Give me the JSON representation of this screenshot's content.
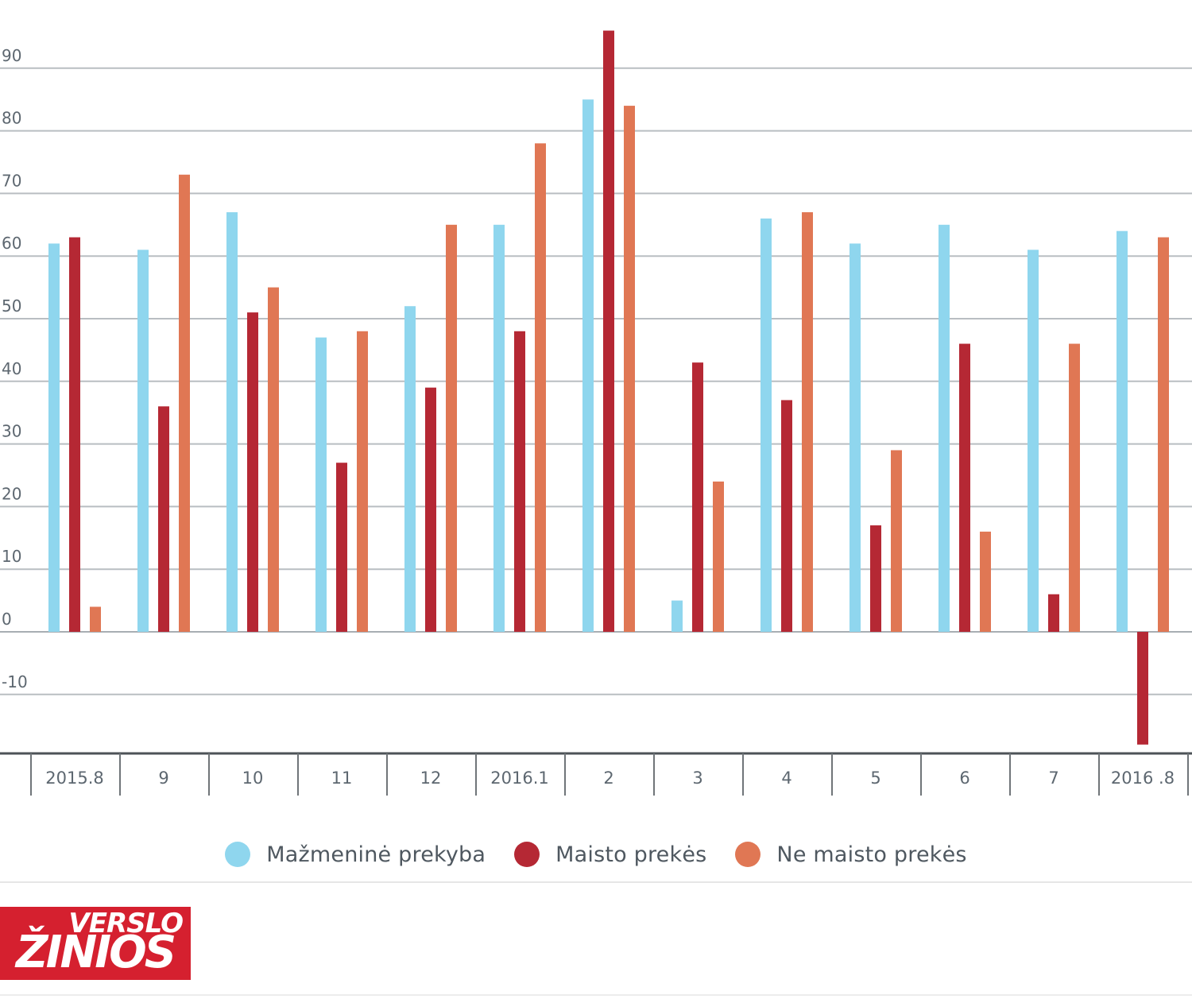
{
  "chart_data": {
    "type": "bar",
    "categories": [
      "2015.8",
      "9",
      "10",
      "11",
      "12",
      "2016.1",
      "2",
      "3",
      "4",
      "5",
      "6",
      "7",
      "2016 .8"
    ],
    "series": [
      {
        "name": "Mažmeninė prekyba",
        "color": "#8fd6ee",
        "values": [
          62,
          61,
          67,
          47,
          52,
          65,
          85,
          5,
          66,
          62,
          65,
          61,
          64
        ]
      },
      {
        "name": "Maisto prekės",
        "color": "#b52834",
        "values": [
          63,
          36,
          51,
          27,
          39,
          48,
          96,
          43,
          37,
          17,
          46,
          6,
          -18
        ]
      },
      {
        "name": "Ne maisto prekės",
        "color": "#e07754",
        "values": [
          4,
          73,
          55,
          48,
          65,
          78,
          84,
          24,
          67,
          29,
          16,
          46,
          63
        ]
      }
    ],
    "yticks": [
      90,
      80,
      70,
      60,
      50,
      40,
      30,
      20,
      10,
      0,
      -10
    ],
    "ylim": [
      -19,
      98
    ],
    "grid": true,
    "legend_position": "bottom-center",
    "title": "",
    "xlabel": "",
    "ylabel": ""
  },
  "legend": [
    {
      "label": "Mažmeninė prekyba",
      "color": "#8fd6ee"
    },
    {
      "label": "Maisto prekės",
      "color": "#b52834"
    },
    {
      "label": "Ne maisto prekės",
      "color": "#e07754"
    }
  ],
  "logo": {
    "line1": "VERSLO",
    "line2": "ŽINIOS"
  }
}
